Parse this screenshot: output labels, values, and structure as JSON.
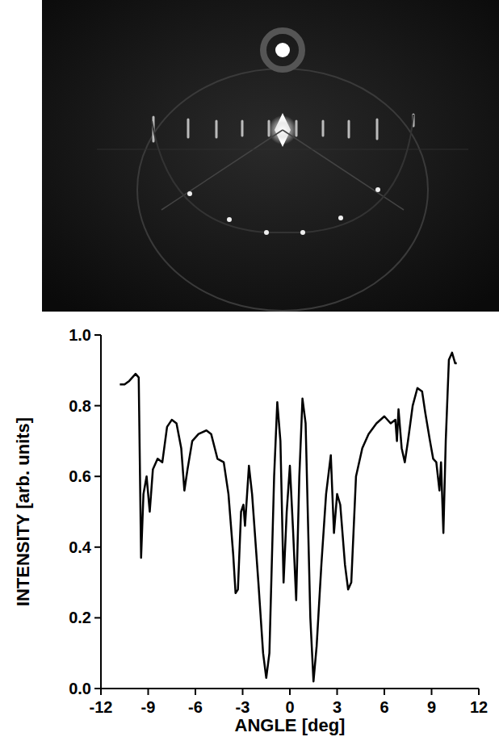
{
  "chart_data": {
    "type": "line",
    "x_label": "ANGLE [deg]",
    "y_label": "INTENSITY [arb. units]",
    "color": "#000000",
    "x": [
      -10.8,
      -10.5,
      -10.2,
      -9.8,
      -9.6,
      -9.45,
      -9.3,
      -9.1,
      -8.9,
      -8.7,
      -8.4,
      -8.1,
      -7.8,
      -7.5,
      -7.2,
      -6.9,
      -6.7,
      -6.5,
      -6.2,
      -5.8,
      -5.3,
      -5.0,
      -4.6,
      -4.2,
      -3.9,
      -3.6,
      -3.45,
      -3.3,
      -3.1,
      -2.95,
      -2.85,
      -2.6,
      -2.4,
      -2.0,
      -1.7,
      -1.5,
      -1.3,
      -1.0,
      -0.8,
      -0.6,
      -0.4,
      -0.2,
      0.0,
      0.2,
      0.4,
      0.6,
      0.8,
      1.0,
      1.3,
      1.5,
      1.7,
      2.0,
      2.3,
      2.6,
      2.8,
      3.0,
      3.2,
      3.5,
      3.7,
      3.9,
      4.2,
      4.6,
      5.0,
      5.5,
      6.0,
      6.4,
      6.7,
      6.8,
      6.9,
      7.1,
      7.3,
      7.5,
      7.8,
      8.1,
      8.4,
      8.6,
      8.9,
      9.1,
      9.3,
      9.5,
      9.6,
      9.75,
      9.9,
      10.1,
      10.3,
      10.5,
      10.6
    ],
    "values": [
      0.86,
      0.86,
      0.87,
      0.89,
      0.88,
      0.37,
      0.55,
      0.6,
      0.5,
      0.62,
      0.65,
      0.64,
      0.74,
      0.76,
      0.75,
      0.68,
      0.56,
      0.62,
      0.7,
      0.72,
      0.73,
      0.72,
      0.65,
      0.64,
      0.55,
      0.38,
      0.27,
      0.28,
      0.5,
      0.52,
      0.46,
      0.63,
      0.55,
      0.3,
      0.1,
      0.03,
      0.1,
      0.6,
      0.81,
      0.7,
      0.3,
      0.5,
      0.63,
      0.45,
      0.25,
      0.6,
      0.82,
      0.75,
      0.2,
      0.02,
      0.12,
      0.35,
      0.55,
      0.66,
      0.44,
      0.55,
      0.52,
      0.35,
      0.28,
      0.3,
      0.6,
      0.68,
      0.72,
      0.75,
      0.77,
      0.75,
      0.76,
      0.7,
      0.79,
      0.68,
      0.64,
      0.7,
      0.8,
      0.85,
      0.84,
      0.78,
      0.7,
      0.65,
      0.64,
      0.56,
      0.64,
      0.44,
      0.7,
      0.93,
      0.95,
      0.92,
      0.92
    ],
    "xlim": [
      -12,
      12
    ],
    "ylim": [
      0,
      1
    ],
    "xticks": [
      -12,
      -9,
      -6,
      -3,
      0,
      3,
      6,
      9,
      12
    ],
    "yticks": [
      {
        "value": 0,
        "label": "0.0"
      },
      {
        "value": 0.2,
        "label": "0.2"
      },
      {
        "value": 0.4,
        "label": "0.4"
      },
      {
        "value": 0.6,
        "label": "0.6"
      },
      {
        "value": 0.8,
        "label": "0.8"
      },
      {
        "value": 1,
        "label": "1.0"
      }
    ],
    "grid": false
  }
}
